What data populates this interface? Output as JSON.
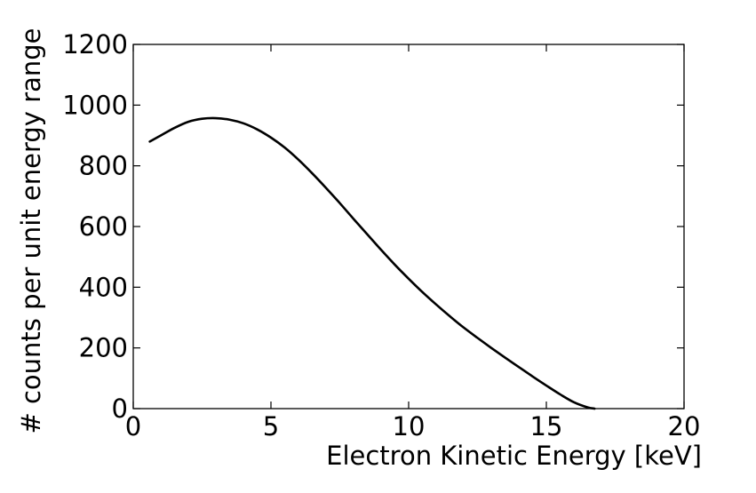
{
  "chart_data": {
    "type": "line",
    "title": "",
    "xlabel": "Electron Kinetic Energy [keV]",
    "ylabel": "# counts per unit energy range",
    "xlim": [
      0,
      20
    ],
    "ylim": [
      0,
      1200
    ],
    "x_ticks": [
      0,
      5,
      10,
      15,
      20
    ],
    "y_ticks": [
      0,
      200,
      400,
      600,
      800,
      1000,
      1200
    ],
    "x_tick_labels": [
      "0",
      "5",
      "10",
      "15",
      "20"
    ],
    "y_tick_labels": [
      "0",
      "200",
      "400",
      "600",
      "800",
      "1000",
      "1200"
    ],
    "grid": false,
    "legend": "none",
    "line_color": "#000000",
    "series": [
      {
        "x": [
          0.6,
          1.0,
          1.5,
          2.0,
          2.5,
          3.0,
          3.5,
          4.0,
          4.5,
          5.0,
          5.5,
          6.0,
          6.5,
          7.0,
          7.5,
          8.0,
          8.5,
          9.0,
          9.5,
          10.0,
          10.5,
          11.0,
          11.5,
          12.0,
          12.5,
          13.0,
          13.5,
          14.0,
          14.5,
          15.0,
          15.5,
          16.0,
          16.5,
          16.75
        ],
        "y": [
          880,
          900,
          925,
          945,
          955,
          957,
          952,
          940,
          920,
          893,
          860,
          820,
          775,
          727,
          677,
          625,
          574,
          523,
          474,
          428,
          384,
          343,
          304,
          267,
          233,
          200,
          168,
          137,
          106,
          76,
          47,
          21,
          4,
          0
        ]
      }
    ]
  }
}
